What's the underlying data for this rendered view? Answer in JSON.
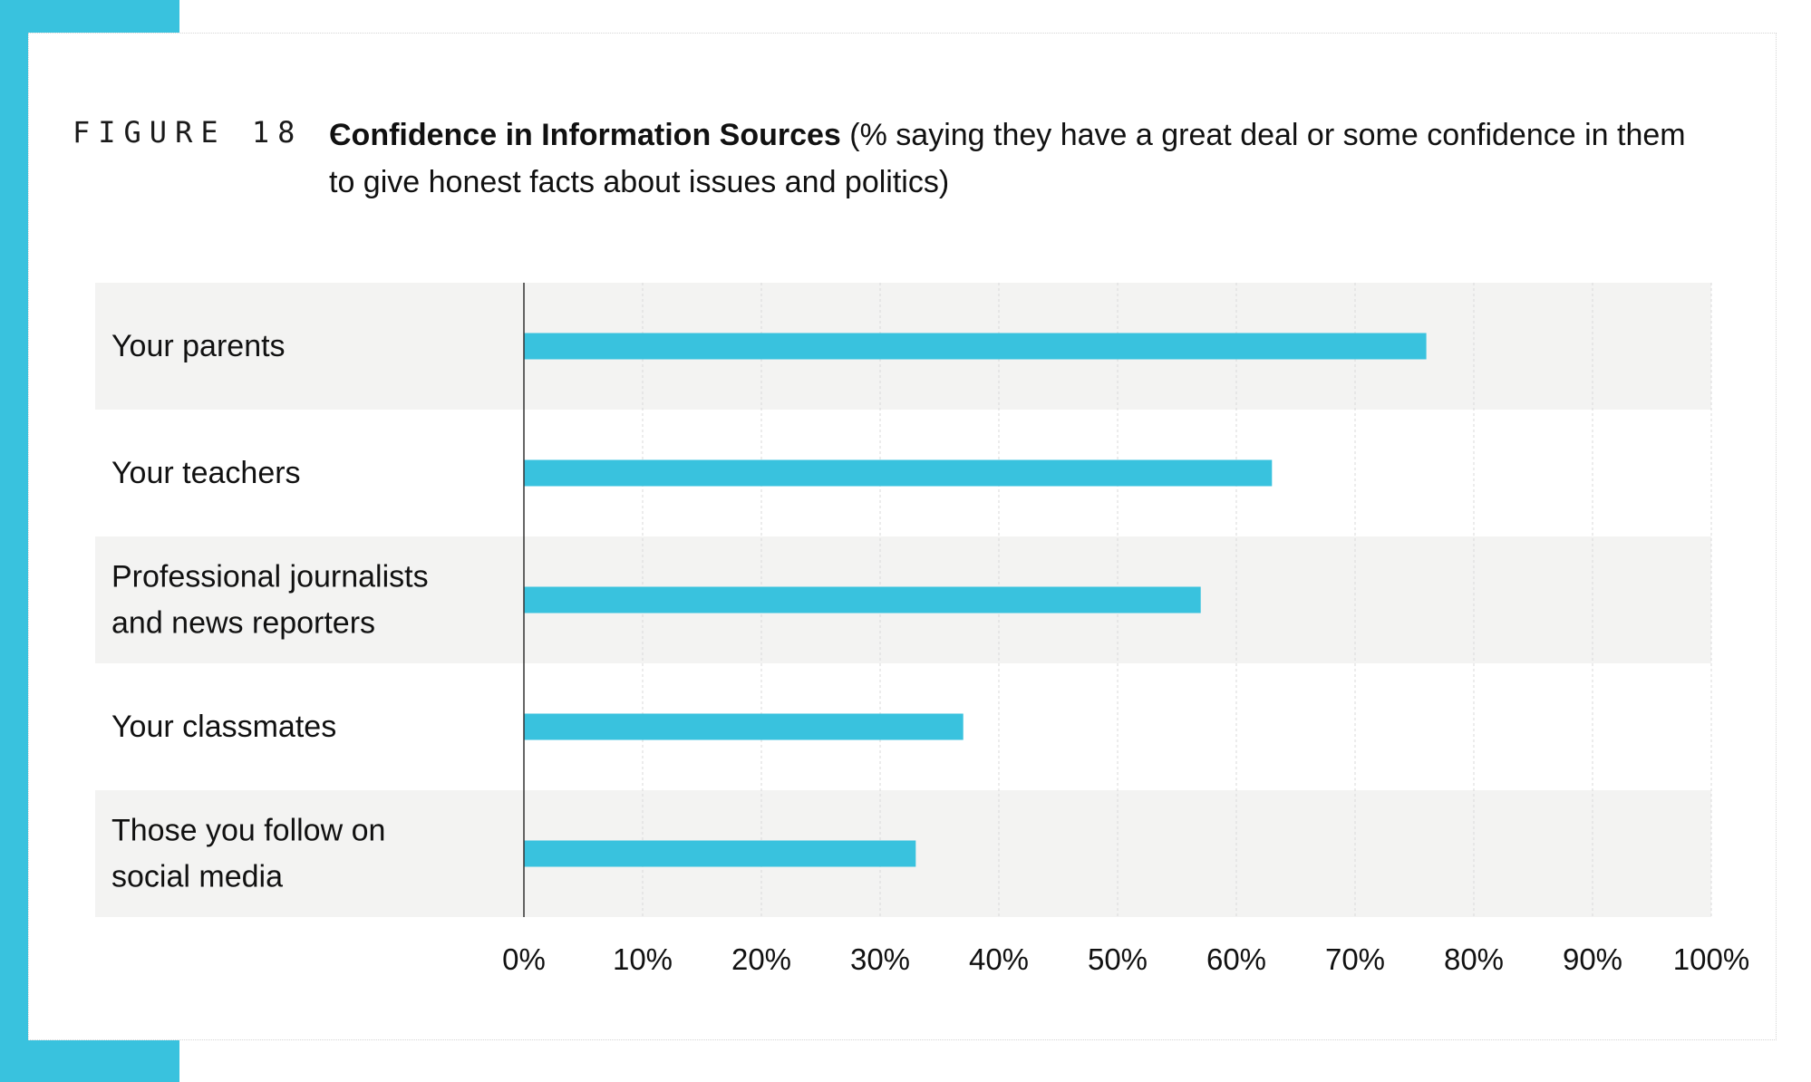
{
  "figure": {
    "label": "FIGURE 18 -",
    "title_bold": "Confidence in Information Sources",
    "title_rest": " (% saying they have a great deal or some confidence in them to give honest facts about issues and politics)"
  },
  "colors": {
    "accent": "#39c2de",
    "bar": "#39c2de",
    "band": "#f3f3f2",
    "grid": "#d9d9d9",
    "axis": "#333333"
  },
  "chart_data": {
    "type": "bar",
    "orientation": "horizontal",
    "title": "Confidence in Information Sources",
    "xlabel": "",
    "ylabel": "",
    "xlim": [
      0,
      100
    ],
    "grid": true,
    "categories": [
      [
        "Your parents"
      ],
      [
        "Your teachers"
      ],
      [
        "Professional journalists",
        "and news reporters"
      ],
      [
        "Your classmates"
      ],
      [
        "Those you follow on",
        "social media"
      ]
    ],
    "values": [
      76,
      63,
      57,
      37,
      33
    ],
    "ticks": [
      0,
      10,
      20,
      30,
      40,
      50,
      60,
      70,
      80,
      90,
      100
    ],
    "tick_labels": [
      "0%",
      "10%",
      "20%",
      "30%",
      "40%",
      "50%",
      "60%",
      "70%",
      "80%",
      "90%",
      "100%"
    ]
  }
}
